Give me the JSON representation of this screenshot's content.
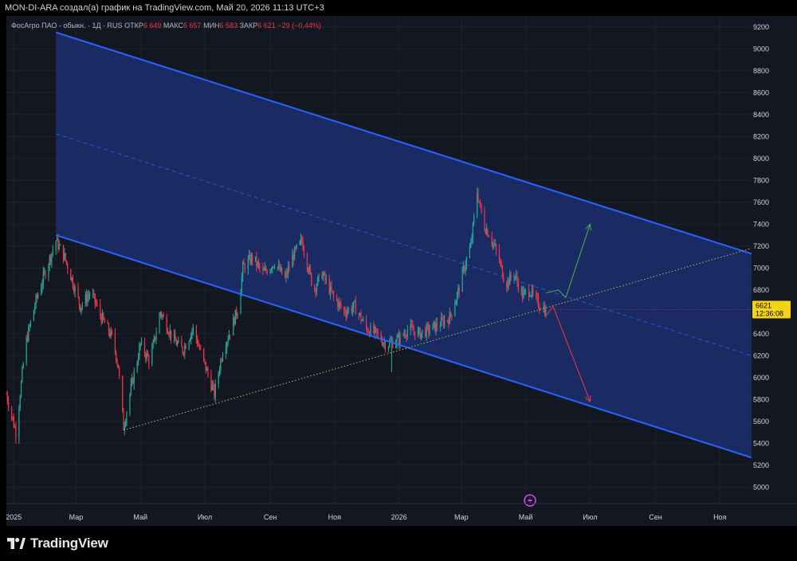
{
  "header": {
    "title": "MON-DI-ARA создал(а) график на TradingView.com, Май 20, 2026 11:13 UTC+3"
  },
  "legend": {
    "symbol": "ФосАгро ПАО - обыкн. · 1Д · RUS",
    "open_label": "ОТКР",
    "open_value": "6 649",
    "high_label": "МАКС",
    "high_value": "6 657",
    "low_label": "МИН",
    "low_value": "6 583",
    "close_label": "ЗАКР",
    "close_value": "6 621",
    "change": "−29 (−0,44%)"
  },
  "price_badge": {
    "price": "6621",
    "countdown": "12:36:08",
    "color": "#f5d418"
  },
  "colors": {
    "up": "#22ab94",
    "down": "#f23645",
    "channel_line": "#2962ff",
    "channel_fill": "#1c2f6e",
    "trendline": "#c7b455",
    "arrow_up": "#4caf50",
    "arrow_down": "#f23645",
    "background": "#131722"
  },
  "footer": {
    "brand": "TradingView"
  },
  "chart_data": {
    "type": "candlestick",
    "symbol": "ФосАгро ПАО - обыкн.",
    "timeframe": "1Д",
    "y_axis": {
      "range": [
        4850,
        9300
      ],
      "ticks": [
        5000,
        5200,
        5400,
        5600,
        5800,
        6000,
        6200,
        6400,
        6600,
        6800,
        7000,
        7200,
        7400,
        7600,
        7800,
        8000,
        8200,
        8400,
        8600,
        8800,
        9000,
        9200
      ],
      "tick_labels": [
        "5000",
        "5200",
        "5400",
        "5600",
        "5800",
        "6000",
        "6200",
        "6400",
        "6600",
        "6800",
        "7000",
        "7200",
        "7400",
        "7600",
        "7800",
        "8000",
        "8200",
        "8400",
        "8600",
        "8800",
        "9000",
        "9200"
      ]
    },
    "x_axis": {
      "range": [
        "2024-12-25",
        "2026-12-01"
      ],
      "ticks": [
        {
          "date": "2025-01-01",
          "label": "2025"
        },
        {
          "date": "2025-03-01",
          "label": "Мар"
        },
        {
          "date": "2025-05-01",
          "label": "Май"
        },
        {
          "date": "2025-07-01",
          "label": "Июл"
        },
        {
          "date": "2025-09-01",
          "label": "Сен"
        },
        {
          "date": "2025-11-01",
          "label": "Ноя"
        },
        {
          "date": "2026-01-01",
          "label": "2026"
        },
        {
          "date": "2026-03-01",
          "label": "Мар"
        },
        {
          "date": "2026-05-01",
          "label": "Май"
        },
        {
          "date": "2026-07-01",
          "label": "Июл"
        },
        {
          "date": "2026-09-01",
          "label": "Сен"
        },
        {
          "date": "2026-11-01",
          "label": "Ноя"
        }
      ]
    },
    "price_path": [
      [
        "2024-12-25",
        5850
      ],
      [
        "2025-01-03",
        5500
      ],
      [
        "2025-01-12",
        6300
      ],
      [
        "2025-01-22",
        6700
      ],
      [
        "2025-02-01",
        7000
      ],
      [
        "2025-02-10",
        7250
      ],
      [
        "2025-02-18",
        7100
      ],
      [
        "2025-02-25",
        6900
      ],
      [
        "2025-03-05",
        6650
      ],
      [
        "2025-03-15",
        6780
      ],
      [
        "2025-03-25",
        6550
      ],
      [
        "2025-04-05",
        6350
      ],
      [
        "2025-04-10",
        6100
      ],
      [
        "2025-04-15",
        5550
      ],
      [
        "2025-04-22",
        5900
      ],
      [
        "2025-05-01",
        6300
      ],
      [
        "2025-05-10",
        6150
      ],
      [
        "2025-05-20",
        6600
      ],
      [
        "2025-06-01",
        6350
      ],
      [
        "2025-06-10",
        6250
      ],
      [
        "2025-06-20",
        6450
      ],
      [
        "2025-06-28",
        6200
      ],
      [
        "2025-07-05",
        6000
      ],
      [
        "2025-07-10",
        5850
      ],
      [
        "2025-07-18",
        6250
      ],
      [
        "2025-07-26",
        6450
      ],
      [
        "2025-08-02",
        6650
      ],
      [
        "2025-08-06",
        7000
      ],
      [
        "2025-08-15",
        7100
      ],
      [
        "2025-08-25",
        6950
      ],
      [
        "2025-09-05",
        7050
      ],
      [
        "2025-09-15",
        6900
      ],
      [
        "2025-09-22",
        7100
      ],
      [
        "2025-10-01",
        7250
      ],
      [
        "2025-10-06",
        7050
      ],
      [
        "2025-10-12",
        6800
      ],
      [
        "2025-10-20",
        6950
      ],
      [
        "2025-10-30",
        6750
      ],
      [
        "2025-11-10",
        6600
      ],
      [
        "2025-11-20",
        6650
      ],
      [
        "2025-12-01",
        6450
      ],
      [
        "2025-12-10",
        6400
      ],
      [
        "2025-12-20",
        6300
      ],
      [
        "2026-01-01",
        6350
      ],
      [
        "2026-01-10",
        6450
      ],
      [
        "2026-01-20",
        6400
      ],
      [
        "2026-02-01",
        6450
      ],
      [
        "2026-02-10",
        6500
      ],
      [
        "2026-02-18",
        6550
      ],
      [
        "2026-02-25",
        6750
      ],
      [
        "2026-03-05",
        7050
      ],
      [
        "2026-03-10",
        7200
      ],
      [
        "2026-03-16",
        7700
      ],
      [
        "2026-03-22",
        7400
      ],
      [
        "2026-03-28",
        7300
      ],
      [
        "2026-04-05",
        7100
      ],
      [
        "2026-04-12",
        6850
      ],
      [
        "2026-04-20",
        6950
      ],
      [
        "2026-04-28",
        6750
      ],
      [
        "2026-05-05",
        6800
      ],
      [
        "2026-05-10",
        6700
      ],
      [
        "2026-05-15",
        6660
      ],
      [
        "2026-05-20",
        6621
      ]
    ],
    "wick_extremes": [
      {
        "date": "2026-03-15",
        "high": 7950
      },
      {
        "date": "2025-12-25",
        "low": 6050
      }
    ],
    "drawings": {
      "channel_upper": [
        [
          "2025-02-10",
          9150
        ],
        [
          "2026-12-01",
          7130
        ]
      ],
      "channel_lower": [
        [
          "2025-02-10",
          7300
        ],
        [
          "2026-12-01",
          5270
        ]
      ],
      "channel_mid": [
        [
          "2025-02-10",
          8225
        ],
        [
          "2026-12-01",
          6200
        ]
      ],
      "support_trendline": [
        [
          "2025-04-15",
          5520
        ],
        [
          "2026-12-01",
          7180
        ]
      ],
      "projection_up": [
        [
          "2026-05-20",
          6770
        ],
        [
          "2026-06-01",
          6800
        ],
        [
          "2026-06-08",
          6730
        ],
        [
          "2026-07-01",
          7400
        ]
      ],
      "projection_down": [
        [
          "2026-05-20",
          6560
        ],
        [
          "2026-05-27",
          6650
        ],
        [
          "2026-07-01",
          5780
        ]
      ]
    }
  }
}
